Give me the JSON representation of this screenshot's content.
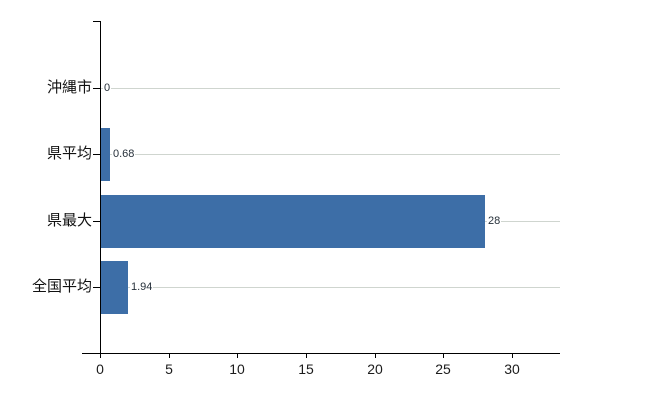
{
  "chart_data": {
    "type": "bar",
    "orientation": "horizontal",
    "title": "",
    "categories": [
      "沖縄市",
      "県平均",
      "県最大",
      "全国平均"
    ],
    "values": [
      0,
      0.68,
      28,
      1.94
    ],
    "value_labels": [
      "0",
      "0.68",
      "28",
      "1.94"
    ],
    "x_ticks": [
      0,
      5,
      10,
      15,
      20,
      25,
      30
    ],
    "x_tick_labels": [
      "0",
      "5",
      "10",
      "15",
      "20",
      "25",
      "30"
    ],
    "xlim": [
      0,
      33.5
    ],
    "grid": true,
    "legend": false,
    "bar_color": "#3d6ea7",
    "colors": {
      "axis": "#000000",
      "vertical_grid": "#d2d2d2",
      "horizontal_grid": "#cfd5cf",
      "top_border": "#c8c8c8",
      "category_text": "#111111",
      "tick_text": "#1c1c1c",
      "value_text": "#26303a",
      "background": "#ffffff"
    }
  }
}
